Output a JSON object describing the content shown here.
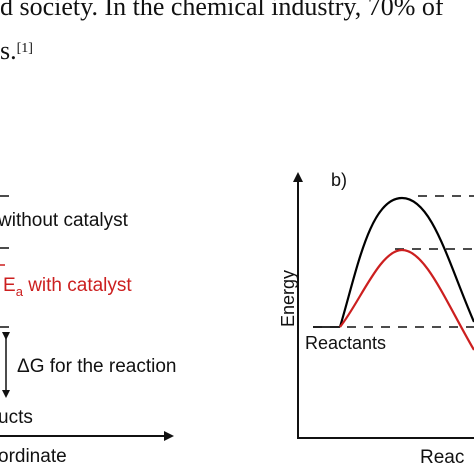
{
  "text": {
    "line1": "d society. In the chemical industry, 70% of",
    "line2_prefix": "s.",
    "line2_cite": "[1]"
  },
  "panel_a": {
    "label_without": "without catalyst",
    "label_ea_main": "E",
    "label_ea_sub": "a",
    "label_ea_rest": " with catalyst",
    "label_dg": "ΔG for the reaction",
    "label_products": "ucts",
    "axis_label": "ordinate"
  },
  "panel_b": {
    "panel_label": "b)",
    "y_axis_label": "Energy",
    "reactants_label": "Reactants",
    "x_axis_label": "Reac"
  },
  "colors": {
    "text": "#111111",
    "catalyst": "#cc1f1f",
    "uncatalyzed": "#000000"
  }
}
